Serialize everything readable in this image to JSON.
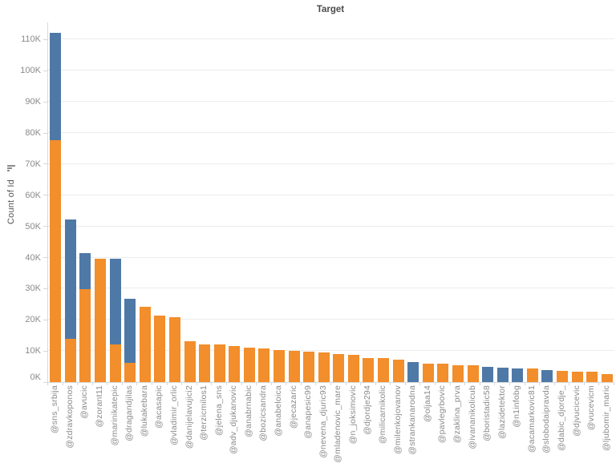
{
  "colors": {
    "orange": "#f28e2b",
    "blue": "#4e79a7",
    "gridline": "#ececec",
    "axis_rule": "#d9d9d9",
    "tick_text": "#8a8a8a",
    "title_text": "#4a4a4a"
  },
  "chart_data": {
    "type": "bar",
    "stacked": true,
    "title": "Target",
    "xlabel": "",
    "ylabel": "Count of Id",
    "value_unit": "K (thousands)",
    "ylim": [
      0,
      115.5
    ],
    "ytick_step": 10,
    "ytick_labels": [
      "0K",
      "10K",
      "20K",
      "30K",
      "40K",
      "50K",
      "60K",
      "70K",
      "80K",
      "90K",
      "100K",
      "110K"
    ],
    "grid": true,
    "legend": "none",
    "sort": "descending by total",
    "categories": [
      "@sns_srbija",
      "@zdravkoponos",
      "@avucic",
      "@zorant11",
      "@marinikatepic",
      "@dragandjilas",
      "@lukakebara",
      "@acasapic",
      "@vladimir_orlic",
      "@danijelavujici2",
      "@terzicmilos1",
      "@jelena_sns",
      "@adv_djukanovic",
      "@anabrnabic",
      "@bozicsandra",
      "@anabeloica",
      "@jecazaric",
      "@anapesic99",
      "@nevena_djuric93",
      "@mladenovic_mare",
      "@n_joksimovic",
      "@djordje294",
      "@milicarnikolic",
      "@milenkojovanov",
      "@strankanarodna",
      "@oljaa14",
      "@pavlegrbovic",
      "@zaklina_prva",
      "@ivananikolicub",
      "@boristadic58",
      "@lazidetektor",
      "@n1infobg",
      "@acamarkovic81",
      "@slobodaipravda",
      "@dabic_djordje_",
      "@djvucicevic",
      "@vucevicm",
      "@ljubomir_maric"
    ],
    "series": [
      {
        "name": "orange-segment",
        "color": "#f28e2b",
        "values": [
          77.6,
          13.9,
          29.8,
          39.6,
          12.1,
          6.2,
          24.2,
          21.3,
          20.8,
          13.1,
          12.1,
          12.1,
          11.6,
          11.1,
          10.8,
          10.3,
          10.0,
          9.8,
          9.5,
          9.0,
          8.7,
          7.7,
          7.8,
          7.2,
          0,
          5.9,
          5.8,
          5.4,
          5.5,
          0,
          0,
          0,
          4.4,
          0,
          3.6,
          3.4,
          3.3,
          2.7
        ]
      },
      {
        "name": "blue-segment",
        "color": "#4e79a7",
        "values": [
          34.5,
          38.3,
          11.6,
          0,
          27.5,
          20.5,
          0,
          0,
          0,
          0,
          0,
          0,
          0,
          0,
          0,
          0,
          0,
          0,
          0,
          0,
          0,
          0,
          0,
          0,
          6.4,
          0,
          0,
          0,
          0,
          5.0,
          4.6,
          4.5,
          0,
          3.9,
          0,
          0,
          0,
          0
        ]
      }
    ]
  }
}
